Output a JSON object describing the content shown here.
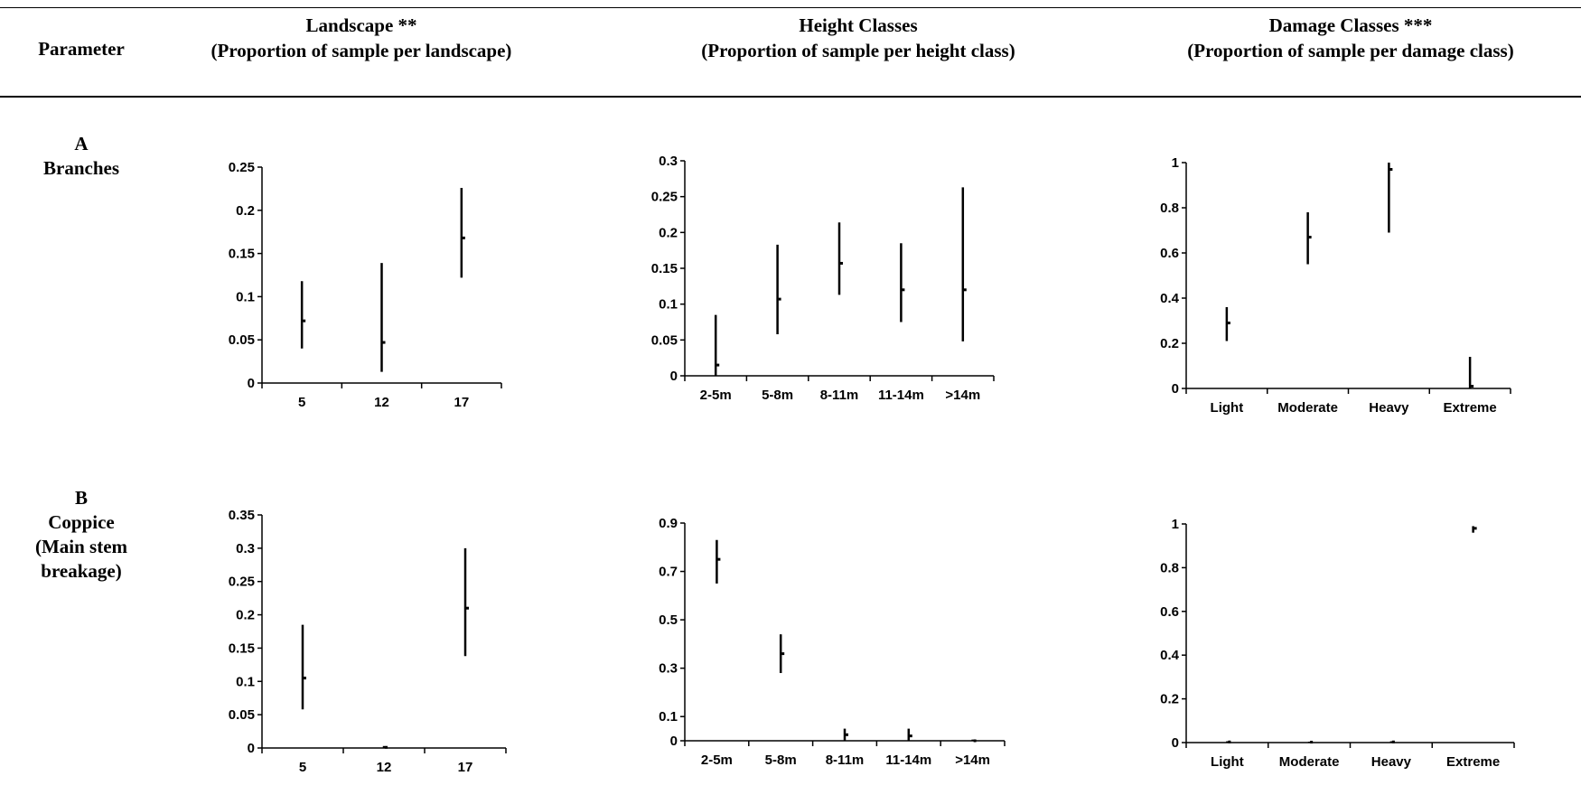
{
  "header": {
    "parameter": "Parameter",
    "landscape_title": "Landscape **",
    "landscape_sub": "(Proportion of sample per landscape)",
    "height_title": "Height Classes",
    "height_sub": "(Proportion of sample per height class)",
    "damage_title": "Damage Classes ***",
    "damage_sub": "(Proportion of sample per damage class)"
  },
  "rows": [
    {
      "letter": "A",
      "label_lines": [
        "Branches"
      ]
    },
    {
      "letter": "B",
      "label_lines": [
        "Coppice",
        "(Main stem",
        "breakage)"
      ]
    }
  ],
  "chart_data": [
    {
      "id": "A-landscape",
      "type": "errorbar",
      "categories": [
        "5",
        "12",
        "17"
      ],
      "ylim": [
        0,
        0.25
      ],
      "yticks": [
        "0",
        "0.05",
        "0.1",
        "0.15",
        "0.2",
        "0.25"
      ],
      "series": [
        {
          "values": [
            0.072,
            0.047,
            0.168
          ],
          "low": [
            0.04,
            0.013,
            0.122
          ],
          "high": [
            0.118,
            0.139,
            0.226
          ]
        }
      ]
    },
    {
      "id": "A-height",
      "type": "errorbar",
      "categories": [
        "2-5m",
        "5-8m",
        "8-11m",
        "11-14m",
        ">14m"
      ],
      "ylim": [
        0,
        0.3
      ],
      "yticks": [
        "0",
        "0.05",
        "0.1",
        "0.15",
        "0.2",
        "0.25",
        "0.3"
      ],
      "series": [
        {
          "values": [
            0.015,
            0.107,
            0.157,
            0.12,
            0.12
          ],
          "low": [
            0,
            0.058,
            0.113,
            0.075,
            0.048
          ],
          "high": [
            0.085,
            0.183,
            0.214,
            0.185,
            0.263
          ]
        }
      ]
    },
    {
      "id": "A-damage",
      "type": "errorbar",
      "categories": [
        "Light",
        "Moderate",
        "Heavy",
        "Extreme"
      ],
      "ylim": [
        0,
        1
      ],
      "yticks": [
        "0",
        "0.2",
        "0.4",
        "0.6",
        "0.8",
        "1"
      ],
      "series": [
        {
          "values": [
            0.29,
            0.67,
            0.97,
            0.01
          ],
          "low": [
            0.21,
            0.55,
            0.69,
            0
          ],
          "high": [
            0.36,
            0.78,
            1.0,
            0.14
          ]
        }
      ]
    },
    {
      "id": "B-landscape",
      "type": "errorbar",
      "categories": [
        "5",
        "12",
        "17"
      ],
      "ylim": [
        0,
        0.35
      ],
      "yticks": [
        "0",
        "0.05",
        "0.1",
        "0.15",
        "0.2",
        "0.25",
        "0.3",
        "0.35"
      ],
      "series": [
        {
          "values": [
            0.105,
            0.001,
            0.21
          ],
          "low": [
            0.058,
            0.0,
            0.138
          ],
          "high": [
            0.185,
            0.003,
            0.3
          ]
        }
      ]
    },
    {
      "id": "B-height",
      "type": "errorbar",
      "categories": [
        "2-5m",
        "5-8m",
        "8-11m",
        "11-14m",
        ">14m"
      ],
      "ylim": [
        0,
        0.9
      ],
      "yticks": [
        "0",
        "0.1",
        "0.3",
        "0.5",
        "0.7",
        "0.9"
      ],
      "series": [
        {
          "values": [
            0.75,
            0.36,
            0.025,
            0.02,
            0.0
          ],
          "low": [
            0.65,
            0.28,
            0.0,
            0.0,
            0.0
          ],
          "high": [
            0.83,
            0.44,
            0.05,
            0.05,
            0.005
          ]
        }
      ]
    },
    {
      "id": "B-damage",
      "type": "errorbar",
      "categories": [
        "Light",
        "Moderate",
        "Heavy",
        "Extreme"
      ],
      "ylim": [
        0,
        1
      ],
      "yticks": [
        "0",
        "0.2",
        "0.4",
        "0.6",
        "0.8",
        "1"
      ],
      "series": [
        {
          "values": [
            0.003,
            0.002,
            0.003,
            0.98
          ],
          "low": [
            0.0,
            0.0,
            0.0,
            0.96
          ],
          "high": [
            0.006,
            0.004,
            0.006,
            0.99
          ]
        }
      ]
    }
  ]
}
